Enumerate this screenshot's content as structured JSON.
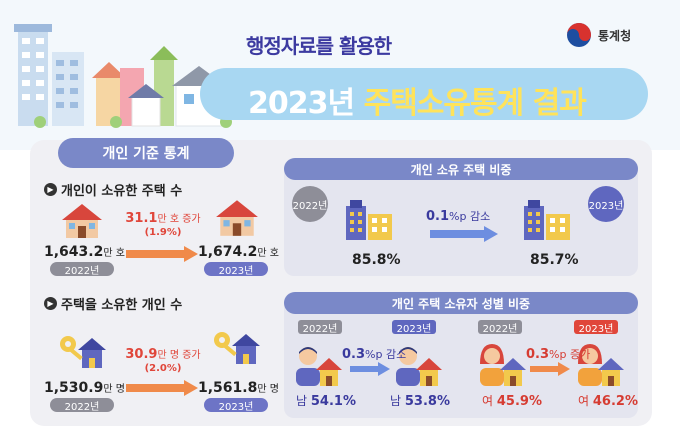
{
  "header": {
    "subtitle": "행정자료를 활용한",
    "title_year": "2023년",
    "title_highlight": "주택소유통계 결과",
    "agency": "통계청"
  },
  "section_tag": "개인 기준 통계",
  "houses_owned": {
    "heading": "개인이 소유한 주택 수",
    "y2022": {
      "value": "1,643.2",
      "unit": "만 호",
      "year": "2022년"
    },
    "y2023": {
      "value": "1,674.2",
      "unit": "만 호",
      "year": "2023년"
    },
    "change": {
      "value": "31.1",
      "unit": "만 호 증가",
      "pct": "(1.9%)"
    }
  },
  "owners": {
    "heading": "주택을 소유한 개인 수",
    "y2022": {
      "value": "1,530.9",
      "unit": "만 명",
      "year": "2022년"
    },
    "y2023": {
      "value": "1,561.8",
      "unit": "만 명",
      "year": "2023년"
    },
    "change": {
      "value": "30.9",
      "unit": "만 명 증가",
      "pct": "(2.0%)"
    }
  },
  "share": {
    "heading": "개인 소유 주택 비중",
    "y2022": {
      "year": "2022년",
      "value": "85.8%"
    },
    "y2023": {
      "year": "2023년",
      "value": "85.7%"
    },
    "change": {
      "value": "0.1",
      "unit": "%p 감소"
    }
  },
  "gender": {
    "heading": "개인 주택 소유자 성별 비중",
    "male": {
      "y2022": {
        "year": "2022년",
        "label": "남",
        "value": "54.1%"
      },
      "y2023": {
        "year": "2023년",
        "label": "남",
        "value": "53.8%"
      },
      "change": {
        "value": "0.3",
        "unit": "%p 감소"
      }
    },
    "female": {
      "y2022": {
        "year": "2022년",
        "label": "여",
        "value": "45.9%"
      },
      "y2023": {
        "year": "2023년",
        "label": "여",
        "value": "46.2%"
      },
      "change": {
        "value": "0.3",
        "unit": "%p 증가"
      }
    }
  },
  "colors": {
    "accent_purple": "#7a88c8",
    "banner_blue": "#a8d7f2",
    "increase_red": "#e0463a",
    "decrease_blue": "#3a3a9e"
  }
}
